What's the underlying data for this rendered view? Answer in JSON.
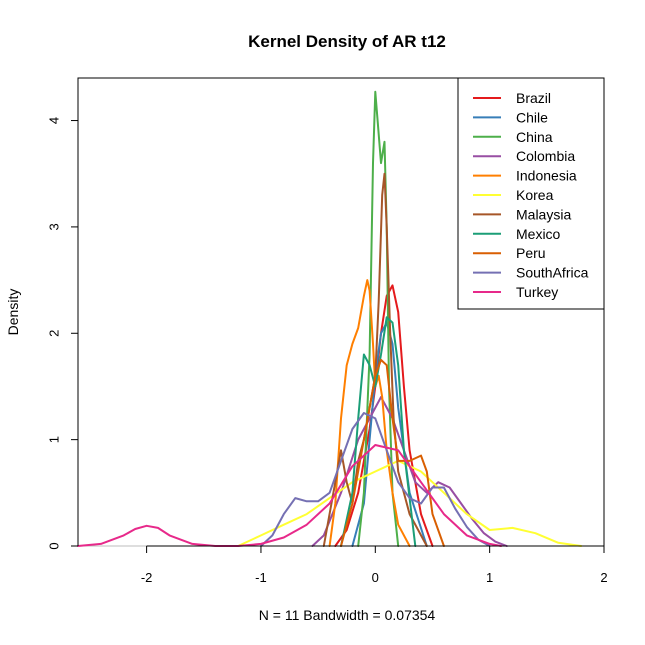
{
  "chart_data": {
    "type": "line",
    "title": "Kernel Density of AR t12",
    "xlabel": "N = 11   Bandwidth = 0.07354",
    "ylabel": "Density",
    "xlim": [
      -2.6,
      2.0
    ],
    "ylim": [
      0,
      4.4
    ],
    "x_ticks": [
      -2,
      -1,
      0,
      1,
      2
    ],
    "y_ticks": [
      0,
      1,
      2,
      3,
      4
    ],
    "legend_position": "top-right",
    "baseline_color": "#BEBEBE",
    "series": [
      {
        "name": "Brazil",
        "color": "#E41A1C",
        "x": [
          -0.35,
          -0.25,
          -0.15,
          -0.05,
          0.0,
          0.05,
          0.1,
          0.15,
          0.2,
          0.25,
          0.3,
          0.4,
          0.5
        ],
        "y": [
          0.0,
          0.15,
          0.5,
          1.1,
          1.5,
          2.0,
          2.35,
          2.45,
          2.2,
          1.5,
          0.9,
          0.3,
          0.0
        ]
      },
      {
        "name": "Chile",
        "color": "#377EB8",
        "x": [
          -0.2,
          -0.1,
          -0.05,
          0.0,
          0.05,
          0.1,
          0.15,
          0.2,
          0.3,
          0.45
        ],
        "y": [
          0.0,
          0.4,
          1.0,
          1.6,
          2.0,
          2.1,
          1.9,
          1.3,
          0.5,
          0.0
        ]
      },
      {
        "name": "China",
        "color": "#4DAF4A",
        "x": [
          -0.15,
          -0.1,
          -0.05,
          -0.02,
          0.0,
          0.02,
          0.05,
          0.08,
          0.1,
          0.12,
          0.15,
          0.2
        ],
        "y": [
          0.0,
          0.5,
          1.8,
          3.6,
          4.27,
          4.0,
          3.6,
          3.8,
          3.0,
          1.5,
          0.5,
          0.0
        ]
      },
      {
        "name": "Colombia",
        "color": "#984EA3",
        "x": [
          -0.55,
          -0.45,
          -0.3,
          -0.15,
          -0.05,
          0.05,
          0.15,
          0.25,
          0.35,
          0.45,
          0.55,
          0.65,
          0.75,
          0.85,
          0.95,
          1.05,
          1.15
        ],
        "y": [
          0.0,
          0.1,
          0.5,
          1.0,
          1.2,
          1.4,
          1.2,
          0.9,
          0.6,
          0.5,
          0.6,
          0.55,
          0.4,
          0.25,
          0.12,
          0.04,
          0.0
        ]
      },
      {
        "name": "Indonesia",
        "color": "#FF7F00",
        "x": [
          -0.4,
          -0.35,
          -0.3,
          -0.25,
          -0.2,
          -0.15,
          -0.1,
          -0.07,
          -0.05,
          -0.02,
          0.0,
          0.03,
          0.06,
          0.1,
          0.15,
          0.2,
          0.3
        ],
        "y": [
          0.0,
          0.4,
          1.2,
          1.7,
          1.9,
          2.05,
          2.35,
          2.5,
          2.4,
          1.9,
          1.5,
          1.6,
          1.4,
          0.9,
          0.5,
          0.2,
          0.0
        ]
      },
      {
        "name": "Korea",
        "color": "#FFFF33",
        "x": [
          -1.2,
          -1.0,
          -0.8,
          -0.6,
          -0.4,
          -0.2,
          0.0,
          0.2,
          0.4,
          0.6,
          0.8,
          1.0,
          1.2,
          1.4,
          1.6,
          1.8
        ],
        "y": [
          0.0,
          0.1,
          0.2,
          0.3,
          0.45,
          0.6,
          0.7,
          0.8,
          0.7,
          0.5,
          0.3,
          0.15,
          0.17,
          0.12,
          0.03,
          0.0
        ]
      },
      {
        "name": "Malaysia",
        "color": "#A65628",
        "x": [
          -0.45,
          -0.35,
          -0.3,
          -0.25,
          -0.2,
          -0.15,
          -0.1,
          0.0,
          0.03,
          0.06,
          0.08,
          0.1,
          0.13,
          0.16,
          0.2,
          0.3,
          0.45
        ],
        "y": [
          0.0,
          0.6,
          0.9,
          0.6,
          0.4,
          0.8,
          1.0,
          1.6,
          2.3,
          3.3,
          3.5,
          3.0,
          2.0,
          1.2,
          0.7,
          0.3,
          0.0
        ]
      },
      {
        "name": "Mexico",
        "color": "#1B9E77",
        "x": [
          -0.3,
          -0.2,
          -0.15,
          -0.1,
          -0.05,
          0.0,
          0.05,
          0.1,
          0.15,
          0.2,
          0.25,
          0.35
        ],
        "y": [
          0.0,
          0.5,
          1.2,
          1.8,
          1.7,
          1.5,
          1.8,
          2.15,
          2.1,
          1.7,
          0.9,
          0.0
        ]
      },
      {
        "name": "Peru",
        "color": "#D95F02",
        "x": [
          -0.3,
          -0.2,
          -0.1,
          0.0,
          0.05,
          0.1,
          0.15,
          0.2,
          0.3,
          0.4,
          0.45,
          0.5,
          0.6
        ],
        "y": [
          0.0,
          0.4,
          1.0,
          1.6,
          1.75,
          1.7,
          1.2,
          0.8,
          0.8,
          0.85,
          0.7,
          0.3,
          0.0
        ]
      },
      {
        "name": "SouthAfrica",
        "color": "#7570B3",
        "x": [
          -1.0,
          -0.9,
          -0.8,
          -0.7,
          -0.6,
          -0.5,
          -0.4,
          -0.3,
          -0.2,
          -0.1,
          0.0,
          0.1,
          0.2,
          0.3,
          0.4,
          0.5,
          0.6,
          0.7,
          0.8,
          0.9,
          1.0
        ],
        "y": [
          0.0,
          0.1,
          0.3,
          0.45,
          0.42,
          0.42,
          0.5,
          0.8,
          1.1,
          1.25,
          1.2,
          0.9,
          0.6,
          0.45,
          0.4,
          0.55,
          0.55,
          0.35,
          0.18,
          0.06,
          0.0
        ]
      },
      {
        "name": "Turkey",
        "color": "#E7298A",
        "x": [
          -2.6,
          -2.4,
          -2.2,
          -2.1,
          -2.0,
          -1.9,
          -1.8,
          -1.6,
          -1.4,
          -1.2,
          -1.0,
          -0.8,
          -0.6,
          -0.4,
          -0.2,
          0.0,
          0.2,
          0.4,
          0.6,
          0.8,
          1.0,
          1.1
        ],
        "y": [
          0.0,
          0.02,
          0.1,
          0.16,
          0.19,
          0.17,
          0.1,
          0.02,
          0.0,
          0.0,
          0.02,
          0.08,
          0.2,
          0.4,
          0.75,
          0.95,
          0.9,
          0.6,
          0.3,
          0.1,
          0.02,
          0.0
        ]
      }
    ]
  }
}
